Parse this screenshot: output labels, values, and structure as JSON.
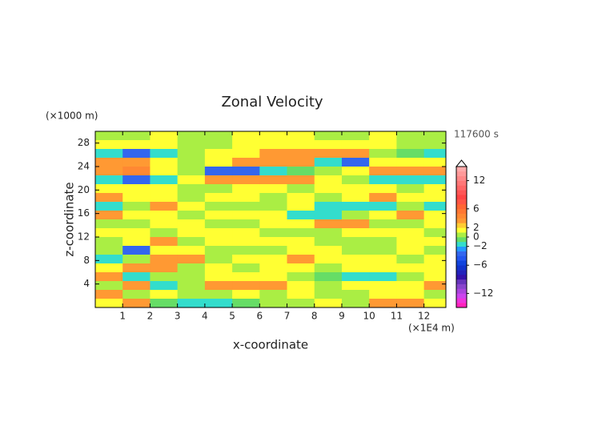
{
  "chart_data": {
    "type": "contour",
    "title": "Zonal Velocity",
    "x_label": "x-coordinate",
    "y_label": "z-coordinate",
    "x_unit": "(×1E4 m)",
    "y_unit": "(×1000 m)",
    "time_label": "117600 s",
    "xlim": [
      0,
      12.8
    ],
    "ylim": [
      0,
      30
    ],
    "xticks": [
      1,
      2,
      3,
      4,
      5,
      6,
      7,
      8,
      9,
      10,
      11,
      12
    ],
    "yticks": [
      4,
      8,
      12,
      16,
      20,
      24,
      28
    ],
    "x": [
      0.5,
      1.5,
      2.5,
      3.5,
      4.5,
      5.5,
      6.5,
      7.5,
      8.5,
      9.5,
      10.5,
      11.5,
      12.5
    ],
    "z": [
      29.25,
      27.75,
      26.25,
      24.75,
      23.25,
      21.75,
      20.25,
      18.75,
      17.25,
      15.75,
      14.25,
      12.75,
      11.25,
      9.75,
      8.25,
      6.75,
      5.25,
      3.75,
      2.25,
      0.75
    ],
    "values": [
      [
        0.5,
        0.5,
        1.5,
        0.5,
        0.5,
        1.5,
        1.5,
        1.5,
        0.5,
        0.5,
        1.5,
        0.5,
        0.5
      ],
      [
        1.5,
        1.5,
        1.5,
        0.5,
        0.5,
        1.5,
        1.5,
        1.5,
        1.5,
        1.5,
        1.5,
        0.5,
        0.5
      ],
      [
        -1.5,
        -3.5,
        -1.5,
        0.5,
        1.5,
        1.5,
        3.5,
        3.5,
        3.5,
        3.5,
        0.5,
        -0.5,
        -1.5
      ],
      [
        3.5,
        3.5,
        1.5,
        0.5,
        1.5,
        3.5,
        3.5,
        3.5,
        -1.5,
        -3.5,
        1.5,
        1.5,
        1.5
      ],
      [
        3.5,
        4.5,
        1.5,
        0.5,
        -3.5,
        -3.5,
        -1.5,
        -0.5,
        0.5,
        1.5,
        3.5,
        3.5,
        3.5
      ],
      [
        -1.5,
        -3.5,
        -1.5,
        1.5,
        3.5,
        3.5,
        3.5,
        3.5,
        1.5,
        0.5,
        -1.5,
        -1.5,
        -1.5
      ],
      [
        1.5,
        1.5,
        1.5,
        0.5,
        0.5,
        1.5,
        1.5,
        0.5,
        1.5,
        1.5,
        1.5,
        0.5,
        1.5
      ],
      [
        3.5,
        1.5,
        1.5,
        0.5,
        1.5,
        1.5,
        0.5,
        1.5,
        0.5,
        1.5,
        3.5,
        1.5,
        1.5
      ],
      [
        -1.5,
        0.5,
        3.5,
        1.5,
        0.5,
        0.5,
        0.5,
        1.5,
        -1.5,
        -1.5,
        -1.5,
        0.5,
        -1.5
      ],
      [
        3.5,
        1.5,
        1.5,
        0.5,
        1.5,
        1.5,
        1.5,
        -1.5,
        -1.5,
        0.5,
        1.5,
        3.5,
        1.5
      ],
      [
        0.5,
        0.5,
        1.5,
        1.5,
        0.5,
        0.5,
        1.5,
        1.5,
        3.5,
        3.5,
        0.5,
        0.5,
        1.5
      ],
      [
        1.5,
        1.5,
        0.5,
        1.5,
        1.5,
        1.5,
        0.5,
        0.5,
        0.5,
        1.5,
        1.5,
        1.5,
        0.5
      ],
      [
        0.5,
        1.5,
        3.5,
        0.5,
        1.5,
        1.5,
        1.5,
        1.5,
        0.5,
        0.5,
        0.5,
        1.5,
        1.5
      ],
      [
        0.5,
        -3.5,
        1.5,
        1.5,
        0.5,
        0.5,
        0.5,
        1.5,
        1.5,
        0.5,
        0.5,
        1.5,
        0.5
      ],
      [
        -1.5,
        0.5,
        3.5,
        3.5,
        0.5,
        1.5,
        1.5,
        3.5,
        1.5,
        1.5,
        1.5,
        0.5,
        1.5
      ],
      [
        1.5,
        3.5,
        3.5,
        0.5,
        1.5,
        0.5,
        1.5,
        1.5,
        0.5,
        1.5,
        1.5,
        1.5,
        1.5
      ],
      [
        3.5,
        -1.5,
        0.5,
        0.5,
        1.5,
        1.5,
        1.5,
        0.5,
        -0.5,
        -1.5,
        -1.5,
        0.5,
        1.5
      ],
      [
        0.5,
        3.5,
        -1.5,
        0.5,
        3.5,
        3.5,
        3.5,
        1.5,
        0.5,
        1.5,
        1.5,
        1.5,
        3.5
      ],
      [
        3.5,
        0.5,
        1.5,
        0.5,
        0.5,
        1.5,
        0.5,
        1.5,
        0.5,
        0.5,
        1.5,
        1.5,
        0.5
      ],
      [
        1.5,
        3.5,
        -0.5,
        -1.5,
        -1.5,
        -0.5,
        0.5,
        0.5,
        1.5,
        0.5,
        3.5,
        3.5,
        1.5
      ]
    ],
    "clim": [
      -15,
      15
    ],
    "cticks": [
      {
        "value": -12,
        "label": "−12"
      },
      {
        "value": -6,
        "label": "−6"
      },
      {
        "value": -2,
        "label": "−2"
      },
      0,
      2,
      6,
      12
    ],
    "colors": [
      "#ff22bb",
      "#ee33dd",
      "#cc44ee",
      "#aa44dd",
      "#8844cc",
      "#6633bb",
      "#3311aa",
      "#2222bb",
      "#1133cc",
      "#1144dd",
      "#2255ee",
      "#3366ee",
      "#2299ff",
      "#33ddcc",
      "#66dd66",
      "#aaee44",
      "#ffff33",
      "#ffcc33",
      "#ff9933",
      "#ff8833",
      "#ff7733",
      "#ff6633",
      "#ff5544",
      "#ff4444",
      "#ff5555",
      "#ff6666",
      "#ff7777",
      "#ff8888",
      "#ff9999",
      "#ffaaaa"
    ]
  }
}
